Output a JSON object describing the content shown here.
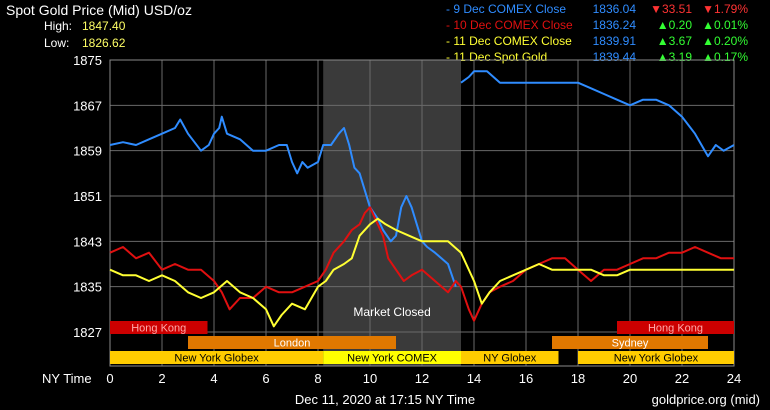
{
  "header": {
    "title": "Spot Gold Price (Mid) USD/oz",
    "high_label": "High:",
    "high_value": "1847.40",
    "low_label": "Low:",
    "low_value": "1826.62"
  },
  "legend": [
    {
      "name": "9 Dec COMEX Close",
      "price": "1836.04",
      "change": "33.51",
      "direction": "down",
      "pct": "1.79%",
      "color": "#2f8cff"
    },
    {
      "name": "10 Dec COMEX Close",
      "price": "1836.24",
      "change": "0.20",
      "direction": "up",
      "pct": "0.01%",
      "color": "#e01010"
    },
    {
      "name": "11 Dec COMEX Close",
      "price": "1839.91",
      "change": "3.67",
      "direction": "up",
      "pct": "0.20%",
      "color": "#ffff33"
    },
    {
      "name": "11 Dec Spot Gold",
      "price": "1839.44",
      "change": "3.19",
      "direction": "up",
      "pct": "0.17%",
      "color": "#ffff33"
    }
  ],
  "market_closed_label": "Market Closed",
  "x_axis_label": "NY Time",
  "footer": {
    "timestamp": "Dec 11, 2020 at 17:15 NY Time",
    "source": "goldprice.org (mid)"
  },
  "sessions": [
    {
      "name": "Hong Kong",
      "start": 0,
      "end": 3.75,
      "row": 0,
      "color": "#cc0000"
    },
    {
      "name": "Hong Kong",
      "start": 19.5,
      "end": 24,
      "row": 0,
      "color": "#cc0000"
    },
    {
      "name": "London",
      "start": 3.0,
      "end": 11.0,
      "row": 1,
      "color": "#e07800"
    },
    {
      "name": "Sydney",
      "start": 17.0,
      "end": 23.0,
      "row": 1,
      "color": "#e07800"
    },
    {
      "name": "New York Globex",
      "start": 0,
      "end": 8.2,
      "row": 2,
      "color": "#ffcc00"
    },
    {
      "name": "New York COMEX",
      "start": 8.2,
      "end": 13.5,
      "row": 2,
      "color": "#ffff00"
    },
    {
      "name": "NY Globex",
      "start": 13.5,
      "end": 17.25,
      "row": 2,
      "color": "#ffcc00"
    },
    {
      "name": "New York Globex",
      "start": 18.0,
      "end": 24,
      "row": 2,
      "color": "#ffcc00"
    }
  ],
  "chart_data": {
    "type": "line",
    "title": "Spot Gold Price (Mid) USD/oz",
    "xlabel": "NY Time",
    "ylabel": "",
    "xlim": [
      0,
      24
    ],
    "ylim": [
      1821,
      1875
    ],
    "x_ticks": [
      0,
      2,
      4,
      6,
      8,
      10,
      12,
      14,
      16,
      18,
      20,
      22,
      24
    ],
    "y_ticks": [
      1827,
      1835,
      1843,
      1851,
      1859,
      1867,
      1875
    ],
    "grid": true,
    "shaded_region": {
      "label": "Market Closed",
      "start": 8.2,
      "end": 13.5
    },
    "series": [
      {
        "name": "9 Dec COMEX Close",
        "color": "#2f8cff",
        "points": [
          [
            0,
            1860
          ],
          [
            0.5,
            1860.5
          ],
          [
            1,
            1860
          ],
          [
            1.5,
            1861
          ],
          [
            2,
            1862
          ],
          [
            2.5,
            1863
          ],
          [
            2.7,
            1864.5
          ],
          [
            3,
            1862
          ],
          [
            3.5,
            1859
          ],
          [
            3.8,
            1860
          ],
          [
            4,
            1862
          ],
          [
            4.2,
            1863
          ],
          [
            4.3,
            1865
          ],
          [
            4.5,
            1862
          ],
          [
            5,
            1861
          ],
          [
            5.5,
            1859
          ],
          [
            6,
            1859
          ],
          [
            6.5,
            1860
          ],
          [
            6.8,
            1860
          ],
          [
            7,
            1857
          ],
          [
            7.2,
            1855
          ],
          [
            7.4,
            1857
          ],
          [
            7.6,
            1856
          ],
          [
            8,
            1857
          ],
          [
            8.2,
            1860
          ],
          [
            8.5,
            1860
          ],
          [
            8.8,
            1862
          ],
          [
            9,
            1863
          ],
          [
            9.2,
            1860
          ],
          [
            9.4,
            1856
          ],
          [
            9.6,
            1855
          ],
          [
            9.8,
            1852
          ],
          [
            10,
            1849
          ],
          [
            10.3,
            1847
          ],
          [
            10.5,
            1845
          ],
          [
            10.8,
            1843
          ],
          [
            11,
            1844
          ],
          [
            11.2,
            1849
          ],
          [
            11.4,
            1851
          ],
          [
            11.6,
            1849
          ],
          [
            11.8,
            1846
          ],
          [
            12,
            1843
          ],
          [
            12.2,
            1842
          ],
          [
            12.5,
            1841
          ],
          [
            13,
            1839
          ],
          [
            13.3,
            1835
          ],
          [
            13.5,
            1871
          ],
          [
            13.8,
            1872
          ],
          [
            14,
            1873
          ],
          [
            14.5,
            1873
          ],
          [
            15,
            1871
          ],
          [
            15.5,
            1871
          ],
          [
            16,
            1871
          ],
          [
            17,
            1871
          ],
          [
            18,
            1871
          ],
          [
            18.5,
            1870
          ],
          [
            19,
            1869
          ],
          [
            19.5,
            1868
          ],
          [
            20,
            1867
          ],
          [
            20.5,
            1868
          ],
          [
            21,
            1868
          ],
          [
            21.5,
            1867
          ],
          [
            22,
            1865
          ],
          [
            22.5,
            1862
          ],
          [
            23,
            1858
          ],
          [
            23.3,
            1860
          ],
          [
            23.6,
            1859
          ],
          [
            24,
            1860
          ]
        ]
      },
      {
        "name": "10 Dec COMEX Close",
        "color": "#e01010",
        "points": [
          [
            0,
            1841
          ],
          [
            0.5,
            1842
          ],
          [
            1,
            1840
          ],
          [
            1.5,
            1841
          ],
          [
            2,
            1838
          ],
          [
            2.5,
            1839
          ],
          [
            3,
            1838
          ],
          [
            3.5,
            1838
          ],
          [
            4,
            1836
          ],
          [
            4.3,
            1834
          ],
          [
            4.6,
            1831
          ],
          [
            5,
            1833
          ],
          [
            5.5,
            1833
          ],
          [
            6,
            1835
          ],
          [
            6.5,
            1834
          ],
          [
            7,
            1834
          ],
          [
            7.5,
            1835
          ],
          [
            8,
            1836
          ],
          [
            8.3,
            1838
          ],
          [
            8.6,
            1841
          ],
          [
            9,
            1843
          ],
          [
            9.3,
            1845
          ],
          [
            9.6,
            1846
          ],
          [
            9.8,
            1848
          ],
          [
            10,
            1849
          ],
          [
            10.3,
            1846
          ],
          [
            10.5,
            1844
          ],
          [
            10.7,
            1840
          ],
          [
            11,
            1838
          ],
          [
            11.3,
            1836
          ],
          [
            11.6,
            1837
          ],
          [
            12,
            1838
          ],
          [
            12.5,
            1836
          ],
          [
            13,
            1834
          ],
          [
            13.3,
            1836
          ],
          [
            13.5,
            1835
          ],
          [
            13.8,
            1831
          ],
          [
            14,
            1829
          ],
          [
            14.3,
            1832
          ],
          [
            14.6,
            1834
          ],
          [
            15,
            1835
          ],
          [
            15.5,
            1836
          ],
          [
            16,
            1838
          ],
          [
            16.5,
            1839
          ],
          [
            17,
            1840
          ],
          [
            17.5,
            1840
          ],
          [
            18,
            1838
          ],
          [
            18.5,
            1836
          ],
          [
            19,
            1838
          ],
          [
            19.5,
            1838
          ],
          [
            20,
            1839
          ],
          [
            20.5,
            1840
          ],
          [
            21,
            1840
          ],
          [
            21.5,
            1841
          ],
          [
            22,
            1841
          ],
          [
            22.5,
            1842
          ],
          [
            23,
            1841
          ],
          [
            23.5,
            1840
          ],
          [
            24,
            1840
          ]
        ]
      },
      {
        "name": "11 Dec COMEX Close",
        "color": "#ffff33",
        "points": [
          [
            0,
            1838
          ],
          [
            0.5,
            1837
          ],
          [
            1,
            1837
          ],
          [
            1.5,
            1836
          ],
          [
            2,
            1837
          ],
          [
            2.5,
            1836
          ],
          [
            3,
            1834
          ],
          [
            3.5,
            1833
          ],
          [
            4,
            1834
          ],
          [
            4.5,
            1836
          ],
          [
            5,
            1834
          ],
          [
            5.5,
            1833
          ],
          [
            6,
            1831
          ],
          [
            6.3,
            1828
          ],
          [
            6.6,
            1830
          ],
          [
            7,
            1832
          ],
          [
            7.5,
            1831
          ],
          [
            8,
            1835
          ],
          [
            8.3,
            1836
          ],
          [
            8.6,
            1838
          ],
          [
            9,
            1839
          ],
          [
            9.3,
            1840
          ],
          [
            9.6,
            1844
          ],
          [
            10,
            1846
          ],
          [
            10.3,
            1847
          ],
          [
            10.6,
            1846
          ],
          [
            11,
            1845
          ],
          [
            11.5,
            1844
          ],
          [
            12,
            1843
          ],
          [
            12.5,
            1843
          ],
          [
            13,
            1843
          ],
          [
            13.5,
            1841
          ],
          [
            14,
            1836
          ],
          [
            14.3,
            1832
          ],
          [
            14.6,
            1834
          ],
          [
            15,
            1836
          ],
          [
            15.5,
            1837
          ],
          [
            16,
            1838
          ],
          [
            16.5,
            1839
          ],
          [
            17,
            1838
          ],
          [
            18,
            1838
          ],
          [
            18.5,
            1838
          ],
          [
            19,
            1837
          ],
          [
            19.5,
            1837
          ],
          [
            20,
            1838
          ],
          [
            20.5,
            1838
          ],
          [
            21,
            1838
          ],
          [
            21.5,
            1838
          ],
          [
            22,
            1838
          ],
          [
            22.5,
            1838
          ],
          [
            23,
            1838
          ],
          [
            23.5,
            1838
          ],
          [
            24,
            1838
          ]
        ]
      }
    ]
  }
}
